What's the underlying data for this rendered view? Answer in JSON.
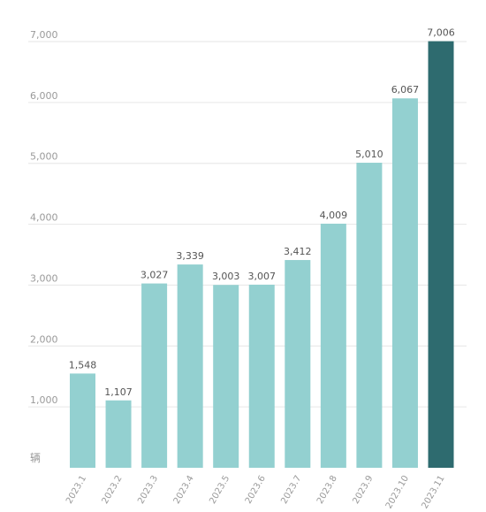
{
  "chart_data": {
    "type": "bar",
    "categories": [
      "2023.1",
      "2023.2",
      "2023.3",
      "2023.4",
      "2023.5",
      "2023.6",
      "2023.7",
      "2023.8",
      "2023.9",
      "2023.10",
      "2023.11"
    ],
    "values": [
      1548,
      1107,
      3027,
      3339,
      3003,
      3007,
      3412,
      4009,
      5010,
      6067,
      7006
    ],
    "value_labels": [
      "1,548",
      "1,107",
      "3,027",
      "3,339",
      "3,003",
      "3,007",
      "3,412",
      "4,009",
      "5,010",
      "6,067",
      "7,006"
    ],
    "yticks": [
      1000,
      2000,
      3000,
      4000,
      5000,
      6000,
      7000
    ],
    "ytick_labels": [
      "1,000",
      "2,000",
      "3,000",
      "4,000",
      "5,000",
      "6,000",
      "7,000"
    ],
    "ylim": [
      0,
      7000
    ],
    "unit_label": "辆",
    "grid": true,
    "colors": {
      "bar": "#93d0d0",
      "highlight": "#2e6b6f",
      "grid": "#e6e6e6"
    },
    "highlight_index": 10
  }
}
